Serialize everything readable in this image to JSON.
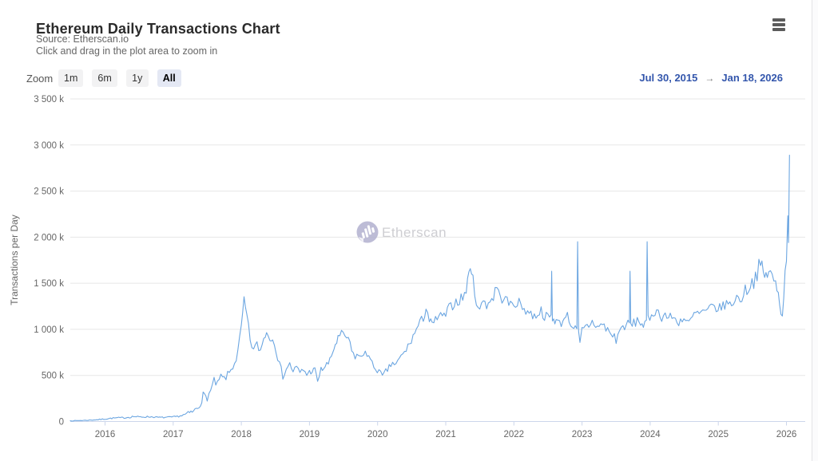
{
  "header": {
    "title": "Ethereum Daily Transactions Chart",
    "source": "Source: Etherscan.io",
    "hint": "Click and drag in the plot area to zoom in"
  },
  "toolbar": {
    "zoom_label": "Zoom",
    "ranges": [
      {
        "label": "1m",
        "selected": false
      },
      {
        "label": "6m",
        "selected": false
      },
      {
        "label": "1y",
        "selected": false
      },
      {
        "label": "All",
        "selected": true
      }
    ],
    "range_from": "Jul 30, 2015",
    "range_arrow": "→",
    "range_to": "Jan 18, 2026"
  },
  "watermark": {
    "text": "Etherscan",
    "icon": "etherscan-logo-circle-bars"
  },
  "menu_icon": "hamburger-menu",
  "colors": {
    "series_line": "#6ca6e1",
    "gridline": "#e7e7e7",
    "axis_line": "#ccd6eb",
    "tick_label": "#666666",
    "range_date_blue": "#3356ac",
    "selected_zoom_bg": "#e4e8f4"
  },
  "chart_data": {
    "type": "line",
    "title": "Ethereum Daily Transactions Chart",
    "xlabel": "",
    "ylabel": "Transactions per Day",
    "unit": "thousands of transactions per day (k)",
    "x_range_shown": {
      "from": "Jul 30, 2015",
      "to": "Jan 18, 2026"
    },
    "xlim": [
      2015.49,
      2026.28
    ],
    "ylim_k": [
      0,
      3500
    ],
    "grid": "horizontal",
    "legend": "none",
    "x_axis": {
      "ticks": [
        {
          "v": 2016,
          "label": "2016"
        },
        {
          "v": 2017,
          "label": "2017"
        },
        {
          "v": 2018,
          "label": "2018"
        },
        {
          "v": 2019,
          "label": "2019"
        },
        {
          "v": 2020,
          "label": "2020"
        },
        {
          "v": 2021,
          "label": "2021"
        },
        {
          "v": 2022,
          "label": "2022"
        },
        {
          "v": 2023,
          "label": "2023"
        },
        {
          "v": 2024,
          "label": "2024"
        },
        {
          "v": 2025,
          "label": "2025"
        },
        {
          "v": 2026,
          "label": "2026"
        }
      ]
    },
    "y_axis": {
      "ticks": [
        {
          "v": 0,
          "label": "0"
        },
        {
          "v": 500,
          "label": "500 k"
        },
        {
          "v": 1000,
          "label": "1 000 k"
        },
        {
          "v": 1500,
          "label": "1 500 k"
        },
        {
          "v": 2000,
          "label": "2 000 k"
        },
        {
          "v": 2500,
          "label": "2 500 k"
        },
        {
          "v": 3000,
          "label": "3 000 k"
        },
        {
          "v": 3500,
          "label": "3 500 k"
        }
      ]
    },
    "series": [
      {
        "name": "Ethereum Daily Transactions",
        "color": "#6ca6e1",
        "points_format": "[year_decimal, value_k, local_volatility_k]",
        "points": [
          [
            2015.49,
            8,
            3
          ],
          [
            2015.6,
            10,
            3
          ],
          [
            2015.75,
            14,
            4
          ],
          [
            2015.9,
            20,
            5
          ],
          [
            2016.0,
            28,
            7
          ],
          [
            2016.1,
            36,
            8
          ],
          [
            2016.2,
            40,
            8
          ],
          [
            2016.3,
            42,
            9
          ],
          [
            2016.42,
            55,
            12
          ],
          [
            2016.5,
            48,
            10
          ],
          [
            2016.6,
            52,
            9
          ],
          [
            2016.7,
            50,
            8
          ],
          [
            2016.8,
            44,
            8
          ],
          [
            2016.9,
            45,
            8
          ],
          [
            2017.0,
            48,
            9
          ],
          [
            2017.08,
            58,
            10
          ],
          [
            2017.15,
            70,
            14
          ],
          [
            2017.22,
            88,
            22
          ],
          [
            2017.3,
            110,
            25
          ],
          [
            2017.38,
            170,
            40
          ],
          [
            2017.44,
            280,
            45
          ],
          [
            2017.5,
            260,
            40
          ],
          [
            2017.55,
            330,
            50
          ],
          [
            2017.6,
            430,
            50
          ],
          [
            2017.65,
            400,
            40
          ],
          [
            2017.7,
            490,
            40
          ],
          [
            2017.75,
            460,
            40
          ],
          [
            2017.8,
            505,
            40
          ],
          [
            2017.85,
            560,
            40
          ],
          [
            2017.9,
            640,
            50
          ],
          [
            2017.95,
            740,
            60
          ],
          [
            2018.0,
            1010,
            80
          ],
          [
            2018.04,
            1330,
            25
          ],
          [
            2018.08,
            1140,
            60
          ],
          [
            2018.13,
            880,
            55
          ],
          [
            2018.18,
            780,
            50
          ],
          [
            2018.23,
            830,
            50
          ],
          [
            2018.28,
            770,
            50
          ],
          [
            2018.33,
            900,
            55
          ],
          [
            2018.37,
            985,
            40
          ],
          [
            2018.42,
            880,
            50
          ],
          [
            2018.46,
            925,
            40
          ],
          [
            2018.51,
            790,
            50
          ],
          [
            2018.56,
            610,
            50
          ],
          [
            2018.61,
            495,
            40
          ],
          [
            2018.66,
            575,
            40
          ],
          [
            2018.71,
            620,
            40
          ],
          [
            2018.76,
            550,
            40
          ],
          [
            2018.81,
            585,
            35
          ],
          [
            2018.86,
            530,
            35
          ],
          [
            2018.91,
            560,
            35
          ],
          [
            2018.96,
            515,
            35
          ],
          [
            2019.02,
            545,
            35
          ],
          [
            2019.08,
            560,
            35
          ],
          [
            2019.12,
            440,
            25
          ],
          [
            2019.17,
            560,
            35
          ],
          [
            2019.23,
            595,
            40
          ],
          [
            2019.3,
            650,
            45
          ],
          [
            2019.36,
            800,
            50
          ],
          [
            2019.42,
            900,
            45
          ],
          [
            2019.47,
            950,
            40
          ],
          [
            2019.52,
            930,
            45
          ],
          [
            2019.57,
            895,
            45
          ],
          [
            2019.62,
            760,
            45
          ],
          [
            2019.67,
            705,
            40
          ],
          [
            2019.72,
            725,
            40
          ],
          [
            2019.77,
            680,
            40
          ],
          [
            2019.82,
            780,
            40
          ],
          [
            2019.87,
            700,
            40
          ],
          [
            2019.92,
            620,
            38
          ],
          [
            2019.97,
            580,
            38
          ],
          [
            2020.02,
            545,
            40
          ],
          [
            2020.07,
            480,
            40
          ],
          [
            2020.12,
            540,
            35
          ],
          [
            2020.17,
            585,
            35
          ],
          [
            2020.22,
            640,
            40
          ],
          [
            2020.27,
            610,
            40
          ],
          [
            2020.32,
            680,
            40
          ],
          [
            2020.37,
            725,
            40
          ],
          [
            2020.42,
            780,
            42
          ],
          [
            2020.47,
            845,
            45
          ],
          [
            2020.52,
            920,
            48
          ],
          [
            2020.57,
            1000,
            50
          ],
          [
            2020.62,
            1065,
            50
          ],
          [
            2020.67,
            1125,
            55
          ],
          [
            2020.71,
            1260,
            95
          ],
          [
            2020.76,
            1095,
            60
          ],
          [
            2020.8,
            1035,
            60
          ],
          [
            2020.85,
            1100,
            50
          ],
          [
            2020.9,
            1150,
            50
          ],
          [
            2020.95,
            1130,
            50
          ],
          [
            2021.0,
            1160,
            58
          ],
          [
            2021.05,
            1225,
            58
          ],
          [
            2021.1,
            1270,
            60
          ],
          [
            2021.15,
            1300,
            60
          ],
          [
            2021.2,
            1320,
            62
          ],
          [
            2021.25,
            1345,
            65
          ],
          [
            2021.3,
            1430,
            80
          ],
          [
            2021.36,
            1690,
            35
          ],
          [
            2021.4,
            1520,
            70
          ],
          [
            2021.45,
            1320,
            70
          ],
          [
            2021.5,
            1185,
            60
          ],
          [
            2021.55,
            1340,
            68
          ],
          [
            2021.6,
            1270,
            60
          ],
          [
            2021.65,
            1305,
            60
          ],
          [
            2021.7,
            1355,
            65
          ],
          [
            2021.75,
            1480,
            70
          ],
          [
            2021.8,
            1325,
            60
          ],
          [
            2021.85,
            1355,
            60
          ],
          [
            2021.9,
            1305,
            58
          ],
          [
            2021.95,
            1265,
            58
          ],
          [
            2022.0,
            1275,
            60
          ],
          [
            2022.05,
            1300,
            60
          ],
          [
            2022.1,
            1260,
            58
          ],
          [
            2022.15,
            1225,
            58
          ],
          [
            2022.2,
            1200,
            58
          ],
          [
            2022.25,
            1165,
            58
          ],
          [
            2022.3,
            1140,
            58
          ],
          [
            2022.35,
            1180,
            58
          ],
          [
            2022.4,
            1200,
            58
          ],
          [
            2022.45,
            1150,
            58
          ],
          [
            2022.5,
            1120,
            55
          ],
          [
            2022.545,
            1150,
            45
          ],
          [
            2022.555,
            1630,
            0
          ],
          [
            2022.565,
            1120,
            45
          ],
          [
            2022.62,
            1095,
            55
          ],
          [
            2022.67,
            1060,
            50
          ],
          [
            2022.72,
            1085,
            50
          ],
          [
            2022.76,
            1180,
            55
          ],
          [
            2022.81,
            1100,
            50
          ],
          [
            2022.86,
            1040,
            50
          ],
          [
            2022.9,
            1010,
            50
          ],
          [
            2022.925,
            980,
            40
          ],
          [
            2022.935,
            1950,
            0
          ],
          [
            2022.95,
            950,
            55
          ],
          [
            2022.97,
            840,
            45
          ],
          [
            2023.0,
            980,
            55
          ],
          [
            2023.05,
            1020,
            58
          ],
          [
            2023.1,
            1045,
            58
          ],
          [
            2023.15,
            1080,
            58
          ],
          [
            2023.2,
            1050,
            58
          ],
          [
            2023.25,
            1020,
            58
          ],
          [
            2023.3,
            1060,
            58
          ],
          [
            2023.35,
            1010,
            58
          ],
          [
            2023.4,
            975,
            58
          ],
          [
            2023.45,
            930,
            65
          ],
          [
            2023.5,
            895,
            65
          ],
          [
            2023.55,
            980,
            58
          ],
          [
            2023.6,
            1025,
            58
          ],
          [
            2023.65,
            1060,
            55
          ],
          [
            2023.695,
            1050,
            45
          ],
          [
            2023.705,
            1630,
            0
          ],
          [
            2023.715,
            1045,
            50
          ],
          [
            2023.76,
            1060,
            55
          ],
          [
            2023.81,
            1100,
            55
          ],
          [
            2023.86,
            1075,
            55
          ],
          [
            2023.9,
            1050,
            52
          ],
          [
            2023.945,
            1060,
            40
          ],
          [
            2023.955,
            1950,
            0
          ],
          [
            2023.97,
            1105,
            50
          ],
          [
            2024.02,
            1160,
            55
          ],
          [
            2024.07,
            1200,
            55
          ],
          [
            2024.12,
            1180,
            55
          ],
          [
            2024.17,
            1140,
            55
          ],
          [
            2024.22,
            1160,
            55
          ],
          [
            2024.27,
            1120,
            52
          ],
          [
            2024.32,
            1140,
            52
          ],
          [
            2024.37,
            1100,
            52
          ],
          [
            2024.42,
            1080,
            52
          ],
          [
            2024.47,
            1120,
            52
          ],
          [
            2024.52,
            1100,
            52
          ],
          [
            2024.57,
            1060,
            52
          ],
          [
            2024.62,
            1130,
            52
          ],
          [
            2024.67,
            1180,
            52
          ],
          [
            2024.72,
            1160,
            52
          ],
          [
            2024.77,
            1200,
            52
          ],
          [
            2024.82,
            1180,
            52
          ],
          [
            2024.87,
            1220,
            52
          ],
          [
            2024.92,
            1250,
            55
          ],
          [
            2024.97,
            1230,
            55
          ],
          [
            2025.02,
            1225,
            55
          ],
          [
            2025.07,
            1255,
            55
          ],
          [
            2025.12,
            1285,
            58
          ],
          [
            2025.17,
            1260,
            58
          ],
          [
            2025.22,
            1305,
            60
          ],
          [
            2025.27,
            1345,
            62
          ],
          [
            2025.32,
            1320,
            65
          ],
          [
            2025.37,
            1390,
            75
          ],
          [
            2025.42,
            1440,
            78
          ],
          [
            2025.47,
            1490,
            85
          ],
          [
            2025.52,
            1530,
            88
          ],
          [
            2025.57,
            1630,
            105
          ],
          [
            2025.62,
            1690,
            105
          ],
          [
            2025.66,
            1605,
            95
          ],
          [
            2025.7,
            1565,
            95
          ],
          [
            2025.74,
            1655,
            115
          ],
          [
            2025.79,
            1550,
            95
          ],
          [
            2025.84,
            1485,
            88
          ],
          [
            2025.88,
            1385,
            70
          ],
          [
            2025.92,
            1205,
            50
          ],
          [
            2025.94,
            1150,
            28
          ],
          [
            2025.96,
            1380,
            75
          ],
          [
            2025.98,
            1600,
            75
          ],
          [
            2026.0,
            1800,
            90
          ],
          [
            2026.02,
            2240,
            25
          ],
          [
            2026.03,
            1985,
            55
          ],
          [
            2026.045,
            2890,
            0
          ]
        ]
      }
    ],
    "annotations": {
      "notable_values_k": {
        "jan_2018_peak": 1330,
        "may_2021_peak": 1690,
        "spike_late_2022": 1950,
        "spike_late_2023": 1950,
        "final_peak_jan_2026": 2890
      }
    }
  }
}
